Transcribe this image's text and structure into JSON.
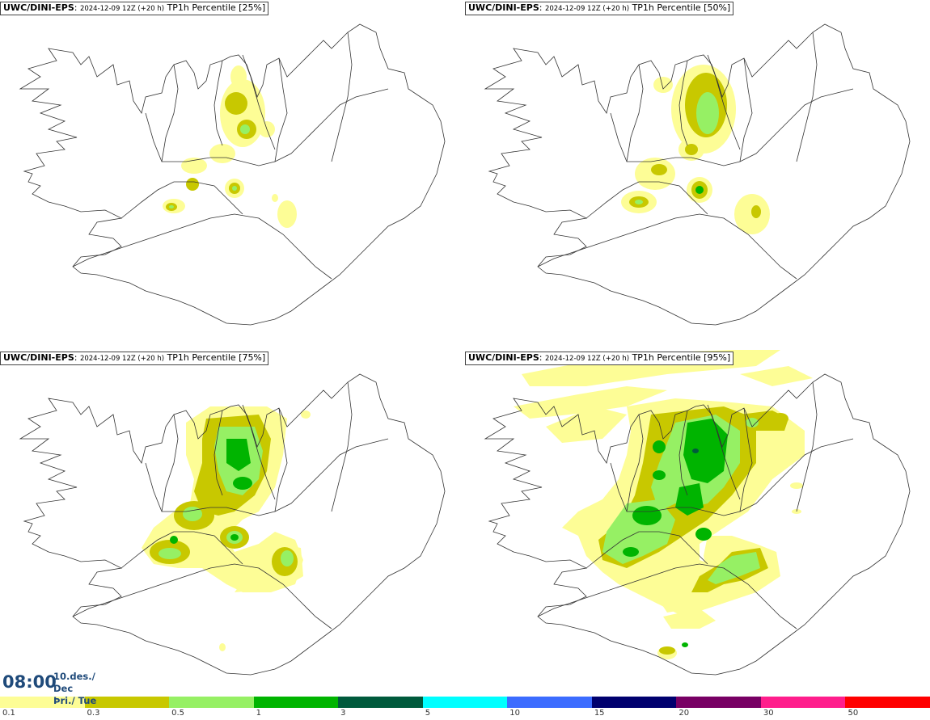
{
  "panels": [
    {
      "model": "UWC/DINI-EPS",
      "run": "2024-12-09 12Z (+20 h)",
      "field": "TP1h Percentile [25%]"
    },
    {
      "model": "UWC/DINI-EPS",
      "run": "2024-12-09 12Z (+20 h)",
      "field": "TP1h Percentile [50%]"
    },
    {
      "model": "UWC/DINI-EPS",
      "run": "2024-12-09 12Z (+20 h)",
      "field": "TP1h Percentile [75%]"
    },
    {
      "model": "UWC/DINI-EPS",
      "run": "2024-12-09 12Z (+20 h)",
      "field": "TP1h Percentile [95%]"
    }
  ],
  "time": "08:00",
  "date_line1": "10.des./ Dec",
  "date_line2": "Þri./ Tue",
  "legend": {
    "colors": [
      "#fdfd96",
      "#c8c800",
      "#96f064",
      "#00b400",
      "#005a3c",
      "#00ffff",
      "#3c6cff",
      "#00006e",
      "#780064",
      "#ff1e8c",
      "#ff0000"
    ],
    "ticks": [
      "0.1",
      "0.3",
      "0.5",
      "1",
      "3",
      "5",
      "10",
      "15",
      "20",
      "30",
      "50"
    ]
  },
  "colors": {
    "light_yellow": "#fdfd96",
    "olive": "#c8c800",
    "light_green": "#96f064",
    "green": "#00b400",
    "dark_green": "#005a3c",
    "dark_blue": "#1f4a7a"
  }
}
